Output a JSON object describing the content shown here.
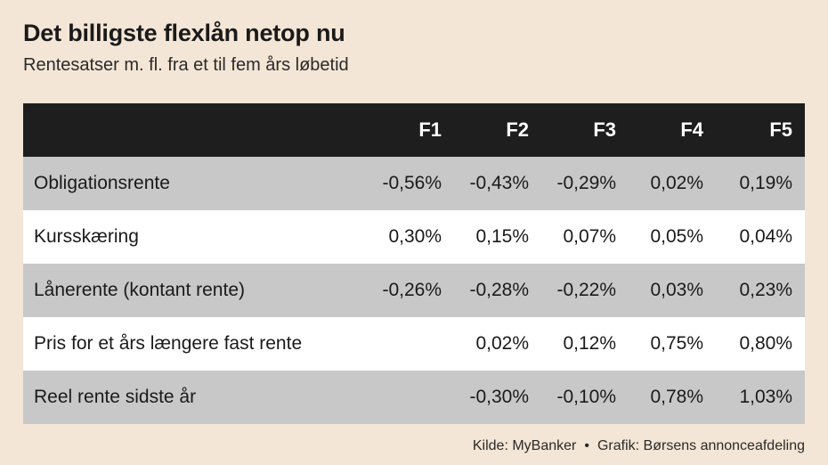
{
  "chart_data": {
    "type": "table",
    "title": "Det billigste flexlån netop nu",
    "subtitle": "Rentesatser m. fl. fra et til fem års løbetid",
    "columns": [
      "",
      "F1",
      "F2",
      "F3",
      "F4",
      "F5"
    ],
    "rows": [
      {
        "label": "Obligationsrente",
        "values": [
          "-0,56%",
          "-0,43%",
          "-0,29%",
          "0,02%",
          "0,19%"
        ]
      },
      {
        "label": "Kursskæring",
        "values": [
          "0,30%",
          "0,15%",
          "0,07%",
          "0,05%",
          "0,04%"
        ]
      },
      {
        "label": "Lånerente (kontant rente)",
        "values": [
          "-0,26%",
          "-0,28%",
          "-0,22%",
          "0,03%",
          "0,23%"
        ]
      },
      {
        "label": "Pris for et års længere fast rente",
        "values": [
          "",
          "0,02%",
          "0,12%",
          "0,75%",
          "0,80%"
        ]
      },
      {
        "label": "Reel rente sidste år",
        "values": [
          "",
          "-0,30%",
          "-0,10%",
          "0,78%",
          "1,03%"
        ]
      }
    ]
  },
  "footer": {
    "source": "Kilde: MyBanker",
    "separator": "•",
    "credit": "Grafik: Børsens annonceafdeling"
  }
}
